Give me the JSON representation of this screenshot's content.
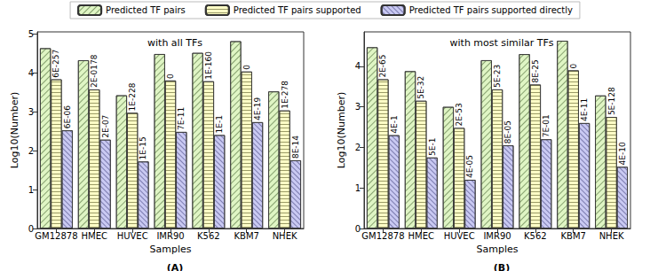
{
  "chart_data": [
    {
      "type": "bar",
      "title": "with all TFs",
      "panel_label": "(A)",
      "x_label": "Samples",
      "y_label": "Log10(Number)",
      "categories": [
        "GM12878",
        "HMEC",
        "HUVEC",
        "IMR90",
        "K562",
        "KBM7",
        "NHEK"
      ],
      "series": [
        {
          "name": "Predicted TF pairs",
          "color": "#dff5c4",
          "marker": "diagonal",
          "values": [
            4.63,
            4.32,
            3.42,
            4.48,
            4.51,
            4.81,
            3.52
          ]
        },
        {
          "name": "Predicted TF pairs supported",
          "color": "#fdfdc6",
          "marker": "horizontal",
          "values": [
            3.83,
            3.57,
            2.97,
            3.8,
            3.78,
            4.03,
            3.03
          ],
          "annotations": [
            "6E-257",
            "2E-0178",
            "1E-228",
            "0",
            "1E-160",
            "0",
            "1E-278"
          ]
        },
        {
          "name": "Predicted TF pairs supported directly",
          "color": "#c9c9f2",
          "marker": "crosshatch",
          "values": [
            2.52,
            2.28,
            1.72,
            2.48,
            2.4,
            2.73,
            1.75
          ],
          "annotations": [
            "6E-06",
            "2E-07",
            "1E-15",
            "7E-11",
            "1E-1",
            "4E-19",
            "8E-14"
          ]
        }
      ],
      "ylim": [
        0,
        5.05
      ],
      "yticks": [
        0,
        1,
        2,
        3,
        4,
        5
      ],
      "grid": false,
      "legend": "top"
    },
    {
      "type": "bar",
      "title": "with most similar TFs",
      "panel_label": "(B)",
      "x_label": "Samples",
      "y_label": "Log10(Number)",
      "categories": [
        "GM12878",
        "HMEC",
        "HUVEC",
        "IMR90",
        "K562",
        "KBM7",
        "NHEK"
      ],
      "series": [
        {
          "name": "Predicted TF pairs",
          "color": "#dff5c4",
          "marker": "diagonal",
          "values": [
            4.47,
            3.88,
            3.0,
            4.15,
            4.3,
            4.63,
            3.28
          ]
        },
        {
          "name": "Predicted TF pairs supported",
          "color": "#fdfdc6",
          "marker": "horizontal",
          "values": [
            3.68,
            3.15,
            2.48,
            3.43,
            3.55,
            3.9,
            2.75
          ],
          "annotations": [
            "2E-65",
            "5E-32",
            "2E-53",
            "5E-23",
            "8E-25",
            "0",
            "5E-128"
          ]
        },
        {
          "name": "Predicted TF pairs supported directly",
          "color": "#c9c9f2",
          "marker": "crosshatch",
          "values": [
            2.3,
            1.75,
            1.2,
            2.05,
            2.2,
            2.6,
            1.52
          ],
          "annotations": [
            "4E-1",
            "5E-1",
            "4E-05",
            "8E-05",
            "7E-01",
            "4E-11",
            "4E-10"
          ]
        }
      ],
      "ylim": [
        0,
        4.85
      ],
      "yticks": [
        0,
        1,
        2,
        3,
        4
      ],
      "grid": false,
      "legend": "top"
    }
  ]
}
